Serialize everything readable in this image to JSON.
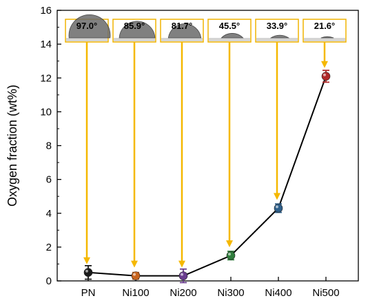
{
  "chart_data": {
    "type": "scatter",
    "categories": [
      "PN",
      "Ni100",
      "Ni200",
      "Ni300",
      "Ni400",
      "Ni500"
    ],
    "series": [
      {
        "values": [
          0.5,
          0.3,
          0.3,
          1.5,
          4.3,
          12.1
        ],
        "errors": [
          0.4,
          0.2,
          0.4,
          0.25,
          0.25,
          0.35
        ],
        "colors": [
          "#1a1a1a",
          "#c8641e",
          "#6a3d8e",
          "#2f7d3c",
          "#2e5f8a",
          "#b02a2a"
        ]
      }
    ],
    "contact_angles": [
      "97.0°",
      "85.9°",
      "81.7°",
      "45.5°",
      "33.9°",
      "21.6°"
    ],
    "xlabel": "",
    "ylabel": "Oxygen fraction (wt%)",
    "ylim": [
      0,
      16
    ],
    "yticks": [
      "0",
      "2",
      "4",
      "6",
      "8",
      "10",
      "12",
      "14",
      "16"
    ],
    "grid": false,
    "connector_line_color": "#000000",
    "arrow_color": "#f5b800",
    "inset_border_color": "#f0b400"
  }
}
